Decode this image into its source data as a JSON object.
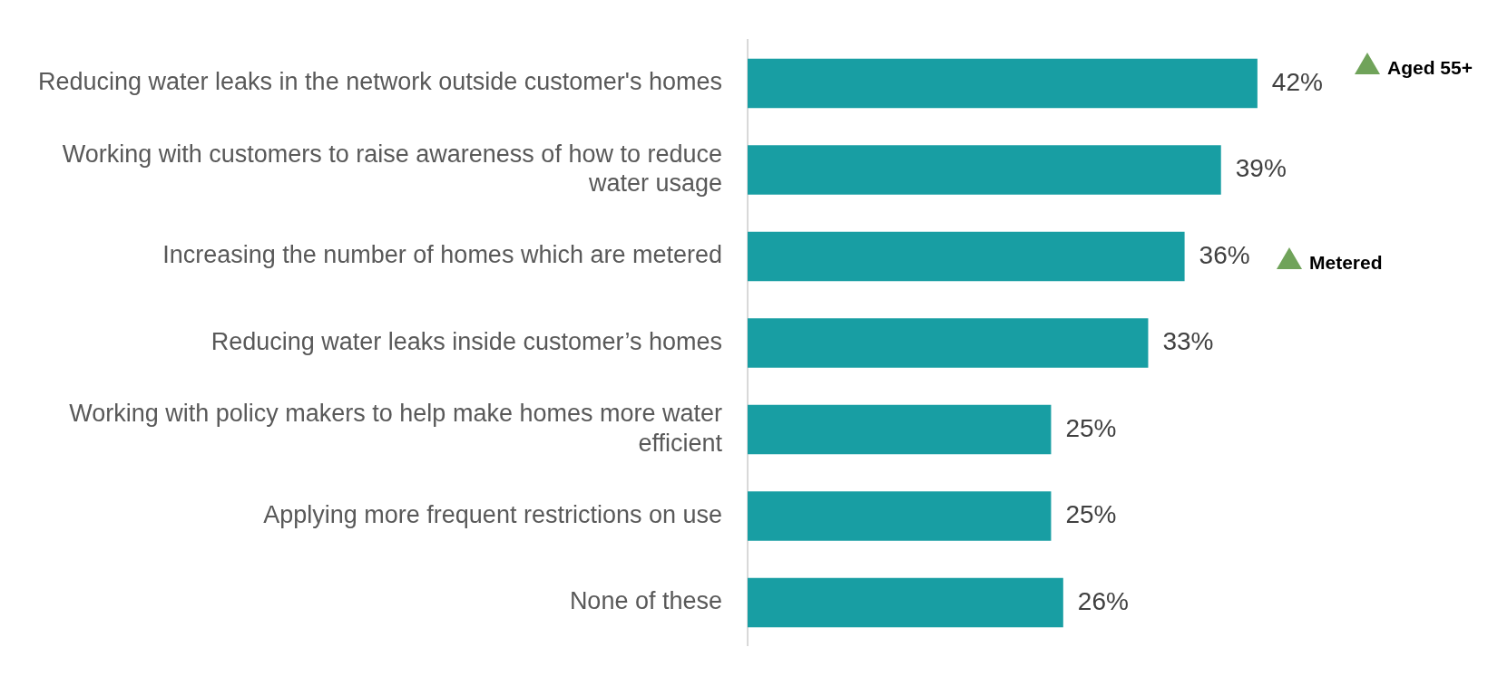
{
  "chart_data": {
    "type": "bar",
    "orientation": "horizontal",
    "categories": [
      "Reducing water leaks in the network outside customer's homes",
      "Working with customers to raise awareness of how to reduce water usage",
      "Increasing the number of homes which are metered",
      "Reducing water leaks inside customer’s homes",
      "Working with policy makers to help make homes more water efficient",
      "Applying more frequent restrictions on use",
      "None of these"
    ],
    "values": [
      42,
      39,
      36,
      33,
      25,
      25,
      26
    ],
    "color": "#189ea3",
    "value_labels": [
      "42%",
      "39%",
      "36%",
      "33%",
      "25%",
      "25%",
      "26%"
    ],
    "annotations": [
      "Aged 55+",
      "Metered"
    ]
  }
}
